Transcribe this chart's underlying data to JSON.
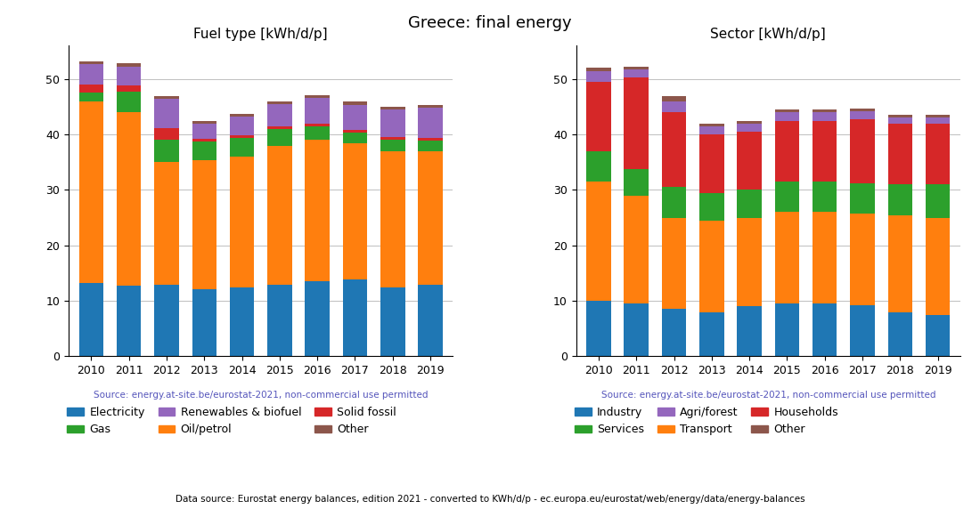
{
  "title": "Greece: final energy",
  "years": [
    2010,
    2011,
    2012,
    2013,
    2014,
    2015,
    2016,
    2017,
    2018,
    2019
  ],
  "source_text": "Source: energy.at-site.be/eurostat-2021, non-commercial use permitted",
  "footer_text": "Data source: Eurostat energy balances, edition 2021 - converted to KWh/d/p - ec.europa.eu/eurostat/web/energy/data/energy-balances",
  "left_title": "Fuel type [kWh/d/p]",
  "fuel_electricity": [
    13.2,
    12.7,
    12.9,
    12.1,
    12.4,
    12.9,
    13.5,
    13.8,
    12.4,
    12.9
  ],
  "fuel_oil": [
    32.8,
    31.3,
    22.1,
    23.2,
    23.6,
    25.1,
    25.5,
    24.7,
    24.6,
    24.1
  ],
  "fuel_gas": [
    1.5,
    3.8,
    4.0,
    3.4,
    3.4,
    3.0,
    2.5,
    1.9,
    2.0,
    1.9
  ],
  "fuel_solid": [
    1.5,
    1.0,
    2.1,
    0.5,
    0.5,
    0.5,
    0.5,
    0.5,
    0.5,
    0.5
  ],
  "fuel_renew": [
    3.7,
    3.5,
    5.3,
    2.8,
    3.3,
    4.0,
    4.6,
    4.5,
    5.0,
    5.5
  ],
  "fuel_other": [
    0.5,
    0.5,
    0.5,
    0.5,
    0.5,
    0.5,
    0.5,
    0.5,
    0.5,
    0.5
  ],
  "right_title": "Sector [kWh/d/p]",
  "sec_industry": [
    10.0,
    9.5,
    8.5,
    8.0,
    9.0,
    9.5,
    9.5,
    9.2,
    8.0,
    7.5
  ],
  "sec_transport": [
    21.5,
    19.5,
    16.5,
    16.5,
    16.0,
    16.5,
    16.5,
    16.5,
    17.5,
    17.5
  ],
  "sec_services": [
    5.5,
    4.8,
    5.5,
    5.0,
    5.0,
    5.5,
    5.5,
    5.5,
    5.5,
    6.0
  ],
  "sec_households": [
    12.5,
    16.5,
    13.5,
    10.5,
    10.5,
    11.0,
    11.0,
    11.5,
    11.0,
    11.0
  ],
  "sec_agri": [
    2.0,
    1.5,
    2.0,
    1.5,
    1.5,
    1.5,
    1.5,
    1.5,
    1.0,
    1.0
  ],
  "sec_other": [
    0.5,
    0.5,
    1.0,
    0.5,
    0.5,
    0.5,
    0.5,
    0.5,
    0.5,
    0.5
  ],
  "color_blue": "#1f77b4",
  "color_orange": "#ff7f0e",
  "color_green": "#2ca02c",
  "color_red": "#d62728",
  "color_purple": "#9467bd",
  "color_brown": "#8c564b"
}
